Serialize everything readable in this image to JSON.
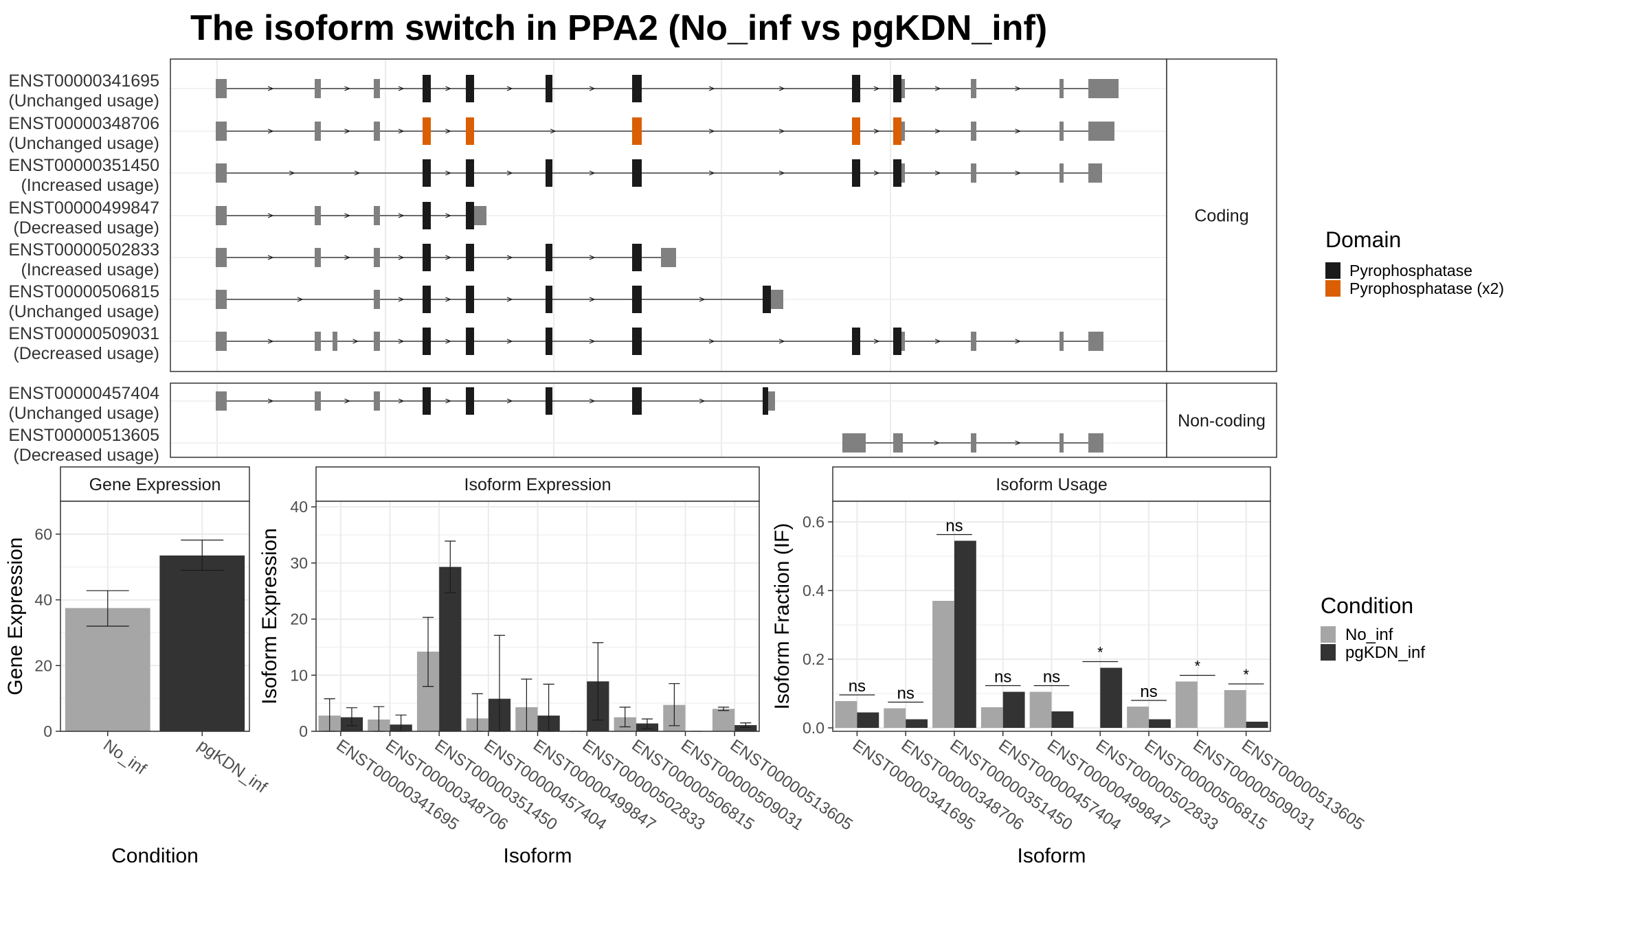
{
  "title": "The isoform switch in PPA2 (No_inf vs pgKDN_inf)",
  "colors": {
    "pyrophosphatase": "#1a1a1a",
    "pyrophosphatase_x2": "#d95f02",
    "exon_plain": "#808080",
    "no_inf": "#a6a6a6",
    "pgkdn_inf": "#333333"
  },
  "chart_data": [
    {
      "type": "transcript_structure",
      "facets": [
        "Coding",
        "Non-coding"
      ],
      "transcripts": [
        {
          "id": "ENST00000341695",
          "usage": "(Unchanged usage)",
          "facet": "Coding"
        },
        {
          "id": "ENST00000348706",
          "usage": "(Unchanged usage)",
          "facet": "Coding"
        },
        {
          "id": "ENST00000351450",
          "usage": "(Increased usage)",
          "facet": "Coding"
        },
        {
          "id": "ENST00000499847",
          "usage": "(Decreased usage)",
          "facet": "Coding"
        },
        {
          "id": "ENST00000502833",
          "usage": "(Increased usage)",
          "facet": "Coding"
        },
        {
          "id": "ENST00000506815",
          "usage": "(Unchanged usage)",
          "facet": "Coding"
        },
        {
          "id": "ENST00000509031",
          "usage": "(Decreased usage)",
          "facet": "Coding"
        },
        {
          "id": "ENST00000457404",
          "usage": "(Unchanged usage)",
          "facet": "Non-coding"
        },
        {
          "id": "ENST00000513605",
          "usage": "(Decreased usage)",
          "facet": "Non-coding"
        }
      ],
      "legend": {
        "title": "Domain",
        "items": [
          "Pyrophosphatase",
          "Pyrophosphatase (x2)"
        ]
      }
    },
    {
      "type": "bar",
      "strip": "Gene Expression",
      "xlabel": "Condition",
      "ylabel": "Gene Expression",
      "categories": [
        "No_inf",
        "pgKDN_inf"
      ],
      "values": [
        37.5,
        53.5
      ],
      "errors": [
        [
          32.0,
          42.8
        ],
        [
          49.0,
          58.2
        ]
      ],
      "ylim": [
        0,
        70
      ],
      "yticks": [
        0,
        20,
        40,
        60
      ]
    },
    {
      "type": "bar",
      "strip": "Isoform Expression",
      "xlabel": "Isoform",
      "ylabel": "Isoform Expression",
      "categories": [
        "ENST00000341695",
        "ENST00000348706",
        "ENST00000351450",
        "ENST00000457404",
        "ENST00000499847",
        "ENST00000502833",
        "ENST00000506815",
        "ENST00000509031",
        "ENST00000513605"
      ],
      "series": [
        {
          "name": "No_inf",
          "values": [
            2.8,
            2.1,
            14.2,
            2.3,
            4.3,
            0.0,
            2.5,
            4.7,
            4.0
          ],
          "errors": [
            [
              0.0,
              5.8
            ],
            [
              0.0,
              4.4
            ],
            [
              8.0,
              20.3
            ],
            [
              0.0,
              6.7
            ],
            [
              0.0,
              9.3
            ],
            [
              0.0,
              0.0
            ],
            [
              0.8,
              4.3
            ],
            [
              1.0,
              8.5
            ],
            [
              3.7,
              4.3
            ]
          ]
        },
        {
          "name": "pgKDN_inf",
          "values": [
            2.5,
            1.2,
            29.3,
            5.8,
            2.8,
            8.9,
            1.4,
            0.0,
            1.1
          ],
          "errors": [
            [
              1.0,
              4.2
            ],
            [
              0.0,
              2.9
            ],
            [
              24.7,
              33.9
            ],
            [
              0.0,
              17.1
            ],
            [
              0.0,
              8.4
            ],
            [
              2.0,
              15.8
            ],
            [
              0.5,
              2.2
            ],
            [
              0.0,
              0.0
            ],
            [
              0.7,
              1.5
            ]
          ]
        }
      ],
      "ylim": [
        0,
        41
      ],
      "yticks": [
        0,
        10,
        20,
        30,
        40
      ]
    },
    {
      "type": "bar",
      "strip": "Isoform Usage",
      "xlabel": "Isoform",
      "ylabel": "Isoform Fraction (IF)",
      "categories": [
        "ENST00000341695",
        "ENST00000348706",
        "ENST00000351450",
        "ENST00000457404",
        "ENST00000499847",
        "ENST00000502833",
        "ENST00000506815",
        "ENST00000509031",
        "ENST00000513605"
      ],
      "series": [
        {
          "name": "No_inf",
          "values": [
            0.078,
            0.057,
            0.37,
            0.06,
            0.105,
            0.0,
            0.062,
            0.135,
            0.11
          ]
        },
        {
          "name": "pgKDN_inf",
          "values": [
            0.045,
            0.025,
            0.545,
            0.105,
            0.048,
            0.175,
            0.025,
            0.0,
            0.018
          ]
        }
      ],
      "significance": [
        "ns",
        "ns",
        "ns",
        "ns",
        "ns",
        "*",
        "ns",
        "*",
        "*"
      ],
      "ylim": [
        -0.01,
        0.66
      ],
      "yticks": [
        0.0,
        0.2,
        0.4,
        0.6
      ],
      "ytick_labels": [
        "0.0",
        "0.2",
        "0.4",
        "0.6"
      ]
    }
  ],
  "condition_legend": {
    "title": "Condition",
    "items": [
      "No_inf",
      "pgKDN_inf"
    ]
  }
}
